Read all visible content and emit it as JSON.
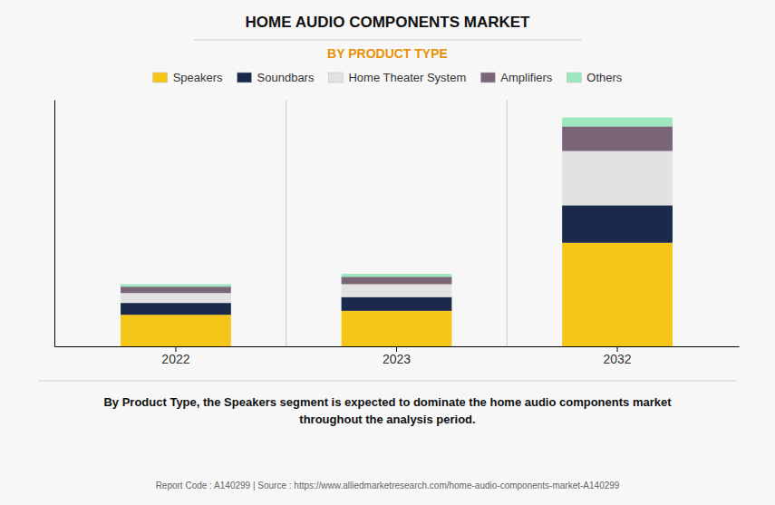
{
  "chart_data": {
    "type": "bar",
    "stacked": true,
    "title": "HOME AUDIO COMPONENTS MARKET",
    "subtitle": "BY PRODUCT TYPE",
    "categories": [
      "2022",
      "2023",
      "2032"
    ],
    "series": [
      {
        "name": "Speakers",
        "color": "#F5C518",
        "values": [
          3.2,
          3.6,
          10.5
        ]
      },
      {
        "name": "Soundbars",
        "color": "#1B2A4A",
        "values": [
          1.2,
          1.4,
          3.8
        ]
      },
      {
        "name": "Home Theater System",
        "color": "#E2E2E2",
        "values": [
          1.0,
          1.3,
          5.5
        ]
      },
      {
        "name": "Amplifiers",
        "color": "#7B6678",
        "values": [
          0.65,
          0.75,
          2.5
        ]
      },
      {
        "name": "Others",
        "color": "#9EE8C0",
        "values": [
          0.25,
          0.3,
          0.9
        ]
      }
    ],
    "ylim": [
      0,
      25
    ],
    "tick_labels": "x",
    "grid": false,
    "legend": "top",
    "annotation": "By Product Type, the Speakers segment is expected to dominate the home audio components market\nthroughout the analysis period.",
    "footer": "Report Code : A140299  |  Source : https://www.alliedmarketresearch.com/home-audio-components-market-A140299"
  }
}
